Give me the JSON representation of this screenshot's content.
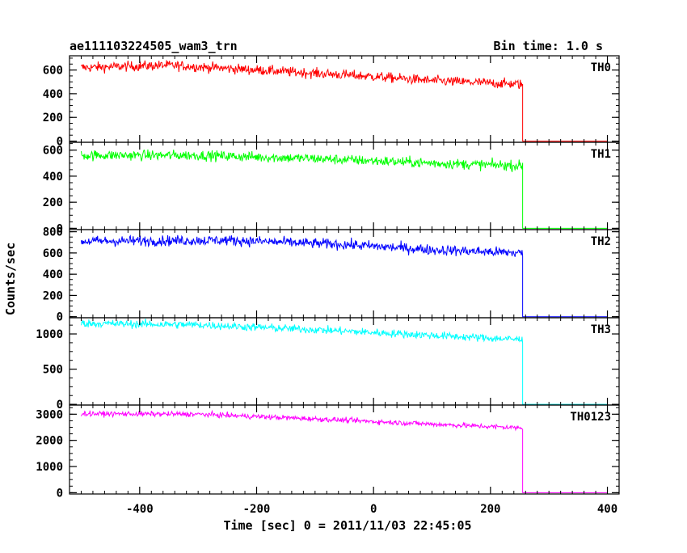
{
  "header": {
    "title": "ae111103224505_wam3_trn",
    "bin_time": "Bin time: 1.0 s"
  },
  "chart_data": {
    "type": "line",
    "xlabel": "Time [sec] 0 = 2011/11/03 22:45:05",
    "ylabel": "Counts/sec",
    "xlim": [
      -520,
      420
    ],
    "x_ticks": [
      -400,
      -200,
      0,
      200,
      400
    ],
    "grid": false,
    "t_start": -500,
    "t_drop": 255,
    "t_end": 400,
    "panels": [
      {
        "name": "TH0",
        "color": "#ff0000",
        "ylim": [
          -10,
          720
        ],
        "yticks": [
          0,
          200,
          400,
          600
        ],
        "trend": [
          [
            -500,
            620
          ],
          [
            -350,
            640
          ],
          [
            -200,
            600
          ],
          [
            0,
            545
          ],
          [
            100,
            510
          ],
          [
            250,
            480
          ]
        ],
        "noise": 30,
        "after_drop": 0
      },
      {
        "name": "TH1",
        "color": "#00ff00",
        "ylim": [
          -10,
          660
        ],
        "yticks": [
          0,
          200,
          400,
          600
        ],
        "trend": [
          [
            -500,
            560
          ],
          [
            -300,
            560
          ],
          [
            -100,
            535
          ],
          [
            100,
            500
          ],
          [
            250,
            480
          ]
        ],
        "noise": 28,
        "after_drop": 0
      },
      {
        "name": "TH2",
        "color": "#0000ff",
        "ylim": [
          -10,
          820
        ],
        "yticks": [
          0,
          200,
          400,
          600,
          800
        ],
        "trend": [
          [
            -500,
            710
          ],
          [
            -250,
            720
          ],
          [
            -50,
            680
          ],
          [
            100,
            630
          ],
          [
            250,
            600
          ]
        ],
        "noise": 35,
        "after_drop": 0
      },
      {
        "name": "TH3",
        "color": "#00ffff",
        "ylim": [
          -10,
          1230
        ],
        "yticks": [
          0,
          500,
          1000
        ],
        "trend": [
          [
            -500,
            1150
          ],
          [
            -300,
            1130
          ],
          [
            -100,
            1060
          ],
          [
            100,
            980
          ],
          [
            250,
            920
          ]
        ],
        "noise": 40,
        "after_drop": 0
      },
      {
        "name": "TH0123",
        "color": "#ff00ff",
        "ylim": [
          -50,
          3350
        ],
        "yticks": [
          0,
          1000,
          2000,
          3000
        ],
        "trend": [
          [
            -500,
            3020
          ],
          [
            -300,
            3000
          ],
          [
            -100,
            2820
          ],
          [
            100,
            2620
          ],
          [
            250,
            2480
          ]
        ],
        "noise": 70,
        "after_drop": 0
      }
    ]
  }
}
